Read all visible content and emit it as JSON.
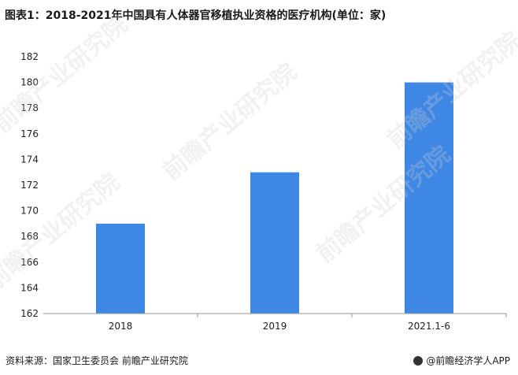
{
  "title": "图表1：2018-2021年中国具有人体器官移植执业资格的医疗机构(单位：家)",
  "source": "资料来源：国家卫生委员会 前瞻产业研究院",
  "brand": "@前瞻经济学人APP",
  "watermark": "前瞻产业研究院",
  "colors": {
    "bar": "#3f87e4",
    "axis": "#999999"
  },
  "chart_data": {
    "type": "bar",
    "title": "图表1：2018-2021年中国具有人体器官移植执业资格的医疗机构(单位：家)",
    "categories": [
      "2018",
      "2019",
      "2021.1-6"
    ],
    "values": [
      169,
      173,
      180
    ],
    "ylim": [
      162,
      182
    ],
    "yticks": [
      162,
      164,
      166,
      168,
      170,
      172,
      174,
      176,
      178,
      180,
      182
    ],
    "grid": false,
    "legend": "none"
  }
}
